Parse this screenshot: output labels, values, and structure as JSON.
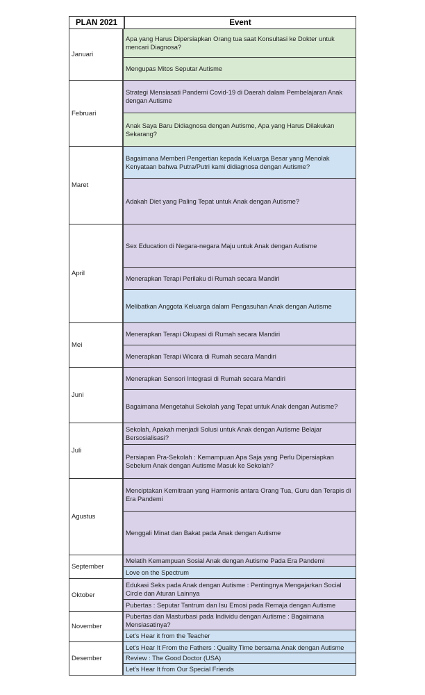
{
  "header": {
    "plan": "PLAN 2021",
    "event": "Event"
  },
  "colors": {
    "green": "#d9ead3",
    "purple": "#d9d2e9",
    "blue": "#cfe2f3"
  },
  "months": [
    {
      "name": "Januari",
      "events": [
        {
          "title": "Apa yang Harus Dipersiapkan Orang tua saat Konsultasi ke Dokter untuk mencari Diagnosa?",
          "color": "green"
        },
        {
          "title": "Mengupas Mitos Seputar Autisme",
          "color": "green"
        }
      ]
    },
    {
      "name": "Februari",
      "events": [
        {
          "title": "Strategi Mensiasati Pandemi Covid-19 di Daerah dalam Pembelajaran Anak dengan Autisme",
          "color": "purple"
        },
        {
          "title": "Anak Saya Baru Didiagnosa dengan Autisme, Apa yang Harus Dilakukan Sekarang?",
          "color": "green"
        }
      ]
    },
    {
      "name": "Maret",
      "events": [
        {
          "title": "Bagaimana Memberi Pengertian kepada Keluarga Besar yang Menolak Kenyataan bahwa Putra/Putri kami didiagnosa dengan Autisme?",
          "color": "blue"
        },
        {
          "title": "Adakah Diet yang Paling Tepat untuk Anak dengan Autisme?",
          "color": "purple"
        }
      ]
    },
    {
      "name": "April",
      "events": [
        {
          "title": "Sex Education di Negara-negara Maju untuk Anak dengan Autisme",
          "color": "purple"
        },
        {
          "title": "Menerapkan Terapi Perilaku di Rumah secara Mandiri",
          "color": "purple"
        },
        {
          "title": "Melibatkan Anggota Keluarga dalam Pengasuhan Anak dengan Autisme",
          "color": "blue"
        }
      ]
    },
    {
      "name": "Mei",
      "events": [
        {
          "title": "Menerapkan Terapi Okupasi di Rumah secara Mandiri",
          "color": "purple"
        },
        {
          "title": "Menerapkan Terapi Wicara di Rumah secara Mandiri",
          "color": "purple"
        }
      ]
    },
    {
      "name": "Juni",
      "events": [
        {
          "title": "Menerapkan Sensori Integrasi di Rumah secara Mandiri",
          "color": "purple"
        },
        {
          "title": "Bagaimana Mengetahui Sekolah yang Tepat untuk Anak dengan Autisme?",
          "color": "purple"
        }
      ]
    },
    {
      "name": "Juli",
      "events": [
        {
          "title": "Sekolah, Apakah menjadi Solusi untuk Anak dengan Autisme Belajar Bersosialisasi?",
          "color": "purple"
        },
        {
          "title": "Persiapan Pra-Sekolah : Kemampuan Apa Saja yang Perlu Dipersiapkan Sebelum Anak dengan Autisme Masuk ke Sekolah?",
          "color": "purple"
        }
      ]
    },
    {
      "name": "Agustus",
      "events": [
        {
          "title": "Menciptakan Kemitraan yang Harmonis antara Orang Tua, Guru dan Terapis di Era Pandemi",
          "color": "purple"
        },
        {
          "title": "Menggali Minat dan Bakat pada Anak dengan Autisme",
          "color": "purple"
        }
      ]
    },
    {
      "name": "September",
      "events": [
        {
          "title": "Melatih Kemampuan Sosial Anak dengan Autisme Pada Era Pandemi",
          "color": "purple"
        },
        {
          "title": "Love on the Spectrum",
          "color": "blue"
        }
      ]
    },
    {
      "name": "Oktober",
      "events": [
        {
          "title": "Edukasi Seks pada Anak dengan Autisme : Pentingnya Mengajarkan Social Circle dan Aturan Lainnya",
          "color": "purple"
        },
        {
          "title": "Pubertas : Seputar Tantrum dan Isu Emosi pada Remaja dengan Autisme",
          "color": "purple"
        }
      ]
    },
    {
      "name": "November",
      "events": [
        {
          "title": "Pubertas dan Masturbasi pada Individu dengan Autisme : Bagaimana Mensiasatinya?",
          "color": "purple"
        },
        {
          "title": "Let's Hear it from the Teacher",
          "color": "blue"
        }
      ]
    },
    {
      "name": "Desember",
      "events": [
        {
          "title": "Let's Hear It From the Fathers : Quality Time bersama Anak dengan Autisme",
          "color": "blue"
        },
        {
          "title": "Review : The Good Doctor (USA)",
          "color": "blue"
        },
        {
          "title": "Let's Hear It from Our Special Friends",
          "color": "blue"
        }
      ]
    }
  ]
}
